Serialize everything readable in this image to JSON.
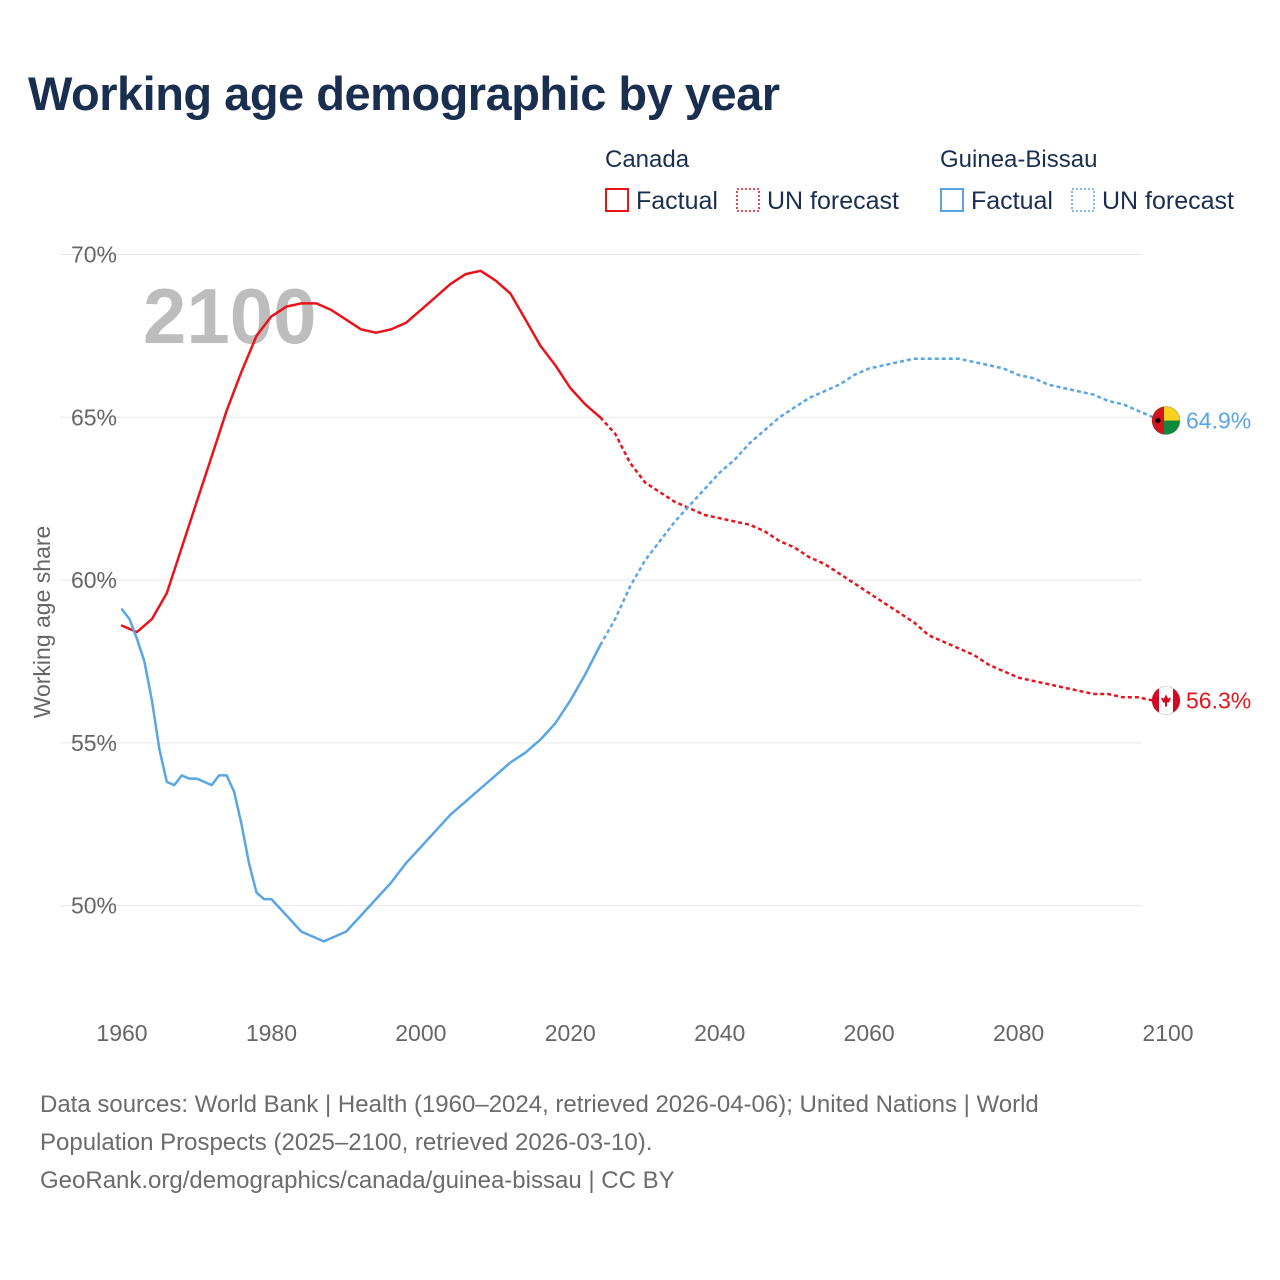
{
  "title": "Working age demographic by year",
  "colors": {
    "canada": "#e8141c",
    "guinea_bissau": "#5aa5e6",
    "title": "#1a2e4f",
    "grid": "#e6e6e6"
  },
  "legend": {
    "groups": [
      {
        "name": "Canada",
        "color": "#e8141c",
        "items": [
          {
            "label": "Factual",
            "style": "solid"
          },
          {
            "label": "UN forecast",
            "style": "dotted"
          }
        ]
      },
      {
        "name": "Guinea-Bissau",
        "color": "#5aa5e6",
        "items": [
          {
            "label": "Factual",
            "style": "solid"
          },
          {
            "label": "UN forecast",
            "style": "dotted"
          }
        ]
      }
    ]
  },
  "chart_data": {
    "type": "line",
    "title": "Working age demographic by year",
    "xlabel": "",
    "ylabel": "Working age share",
    "xlim": [
      1960,
      2100
    ],
    "ylim": [
      47.1,
      70.6
    ],
    "y_ticks": [
      50,
      55,
      60,
      65,
      70
    ],
    "y_tick_labels": [
      "50%",
      "55%",
      "60%",
      "65%",
      "70%"
    ],
    "x_ticks": [
      1960,
      1980,
      2000,
      2020,
      2040,
      2060,
      2080,
      2100
    ],
    "x_tick_labels": [
      "1960",
      "1980",
      "2000",
      "2020",
      "2040",
      "2060",
      "2080",
      "2100"
    ],
    "grid": "horizontal",
    "year_indicator": "2100",
    "factual_end_year": 2024,
    "series": [
      {
        "name": "Canada",
        "color": "#e8141c",
        "end_label": "56.3%",
        "flag_icon": "canada-flag-icon",
        "points": [
          [
            1960,
            58.6
          ],
          [
            1962,
            58.4
          ],
          [
            1964,
            58.8
          ],
          [
            1966,
            59.6
          ],
          [
            1968,
            61.0
          ],
          [
            1970,
            62.4
          ],
          [
            1972,
            63.8
          ],
          [
            1974,
            65.2
          ],
          [
            1976,
            66.4
          ],
          [
            1978,
            67.5
          ],
          [
            1980,
            68.1
          ],
          [
            1982,
            68.4
          ],
          [
            1984,
            68.5
          ],
          [
            1986,
            68.5
          ],
          [
            1988,
            68.3
          ],
          [
            1990,
            68.0
          ],
          [
            1992,
            67.7
          ],
          [
            1994,
            67.6
          ],
          [
            1996,
            67.7
          ],
          [
            1998,
            67.9
          ],
          [
            2000,
            68.3
          ],
          [
            2002,
            68.7
          ],
          [
            2004,
            69.1
          ],
          [
            2006,
            69.4
          ],
          [
            2008,
            69.5
          ],
          [
            2010,
            69.2
          ],
          [
            2012,
            68.8
          ],
          [
            2014,
            68.0
          ],
          [
            2016,
            67.2
          ],
          [
            2018,
            66.6
          ],
          [
            2020,
            65.9
          ],
          [
            2022,
            65.4
          ],
          [
            2024,
            65.0
          ],
          [
            2026,
            64.5
          ],
          [
            2028,
            63.6
          ],
          [
            2030,
            63.0
          ],
          [
            2032,
            62.7
          ],
          [
            2034,
            62.4
          ],
          [
            2036,
            62.2
          ],
          [
            2038,
            62.0
          ],
          [
            2040,
            61.9
          ],
          [
            2042,
            61.8
          ],
          [
            2044,
            61.7
          ],
          [
            2046,
            61.5
          ],
          [
            2048,
            61.2
          ],
          [
            2050,
            61.0
          ],
          [
            2052,
            60.7
          ],
          [
            2054,
            60.5
          ],
          [
            2056,
            60.2
          ],
          [
            2058,
            59.9
          ],
          [
            2060,
            59.6
          ],
          [
            2062,
            59.3
          ],
          [
            2064,
            59.0
          ],
          [
            2066,
            58.7
          ],
          [
            2068,
            58.3
          ],
          [
            2070,
            58.1
          ],
          [
            2072,
            57.9
          ],
          [
            2074,
            57.7
          ],
          [
            2076,
            57.4
          ],
          [
            2078,
            57.2
          ],
          [
            2080,
            57.0
          ],
          [
            2082,
            56.9
          ],
          [
            2084,
            56.8
          ],
          [
            2086,
            56.7
          ],
          [
            2088,
            56.6
          ],
          [
            2090,
            56.5
          ],
          [
            2092,
            56.5
          ],
          [
            2094,
            56.4
          ],
          [
            2096,
            56.4
          ],
          [
            2098,
            56.3
          ],
          [
            2100,
            56.3
          ]
        ]
      },
      {
        "name": "Guinea-Bissau",
        "color": "#5aa5e6",
        "end_label": "64.9%",
        "flag_icon": "guinea-bissau-flag-icon",
        "points": [
          [
            1960,
            59.1
          ],
          [
            1961,
            58.8
          ],
          [
            1962,
            58.2
          ],
          [
            1963,
            57.5
          ],
          [
            1964,
            56.3
          ],
          [
            1965,
            54.8
          ],
          [
            1966,
            53.8
          ],
          [
            1967,
            53.7
          ],
          [
            1968,
            54.0
          ],
          [
            1969,
            53.9
          ],
          [
            1970,
            53.9
          ],
          [
            1972,
            53.7
          ],
          [
            1973,
            54.0
          ],
          [
            1974,
            54.0
          ],
          [
            1975,
            53.5
          ],
          [
            1976,
            52.5
          ],
          [
            1977,
            51.3
          ],
          [
            1978,
            50.4
          ],
          [
            1979,
            50.2
          ],
          [
            1980,
            50.2
          ],
          [
            1982,
            49.7
          ],
          [
            1984,
            49.2
          ],
          [
            1986,
            49.0
          ],
          [
            1987,
            48.9
          ],
          [
            1988,
            49.0
          ],
          [
            1990,
            49.2
          ],
          [
            1992,
            49.7
          ],
          [
            1994,
            50.2
          ],
          [
            1996,
            50.7
          ],
          [
            1998,
            51.3
          ],
          [
            2000,
            51.8
          ],
          [
            2002,
            52.3
          ],
          [
            2004,
            52.8
          ],
          [
            2006,
            53.2
          ],
          [
            2008,
            53.6
          ],
          [
            2010,
            54.0
          ],
          [
            2012,
            54.4
          ],
          [
            2014,
            54.7
          ],
          [
            2016,
            55.1
          ],
          [
            2018,
            55.6
          ],
          [
            2020,
            56.3
          ],
          [
            2022,
            57.1
          ],
          [
            2024,
            58.0
          ],
          [
            2026,
            58.8
          ],
          [
            2028,
            59.8
          ],
          [
            2030,
            60.6
          ],
          [
            2032,
            61.2
          ],
          [
            2034,
            61.8
          ],
          [
            2036,
            62.3
          ],
          [
            2038,
            62.8
          ],
          [
            2040,
            63.3
          ],
          [
            2042,
            63.7
          ],
          [
            2044,
            64.2
          ],
          [
            2046,
            64.6
          ],
          [
            2048,
            65.0
          ],
          [
            2050,
            65.3
          ],
          [
            2052,
            65.6
          ],
          [
            2054,
            65.8
          ],
          [
            2056,
            66.0
          ],
          [
            2058,
            66.3
          ],
          [
            2060,
            66.5
          ],
          [
            2062,
            66.6
          ],
          [
            2064,
            66.7
          ],
          [
            2066,
            66.8
          ],
          [
            2068,
            66.8
          ],
          [
            2070,
            66.8
          ],
          [
            2072,
            66.8
          ],
          [
            2074,
            66.7
          ],
          [
            2076,
            66.6
          ],
          [
            2078,
            66.5
          ],
          [
            2080,
            66.3
          ],
          [
            2082,
            66.2
          ],
          [
            2084,
            66.0
          ],
          [
            2086,
            65.9
          ],
          [
            2088,
            65.8
          ],
          [
            2090,
            65.7
          ],
          [
            2092,
            65.5
          ],
          [
            2094,
            65.4
          ],
          [
            2096,
            65.2
          ],
          [
            2098,
            65.0
          ],
          [
            2100,
            64.9
          ]
        ]
      }
    ]
  },
  "sources": {
    "line1": "Data sources: World Bank | Health (1960–2024, retrieved 2026-04-06); United Nations | World",
    "line2": "Population Prospects (2025–2100, retrieved 2026-03-10).",
    "line3": "GeoRank.org/demographics/canada/guinea-bissau | CC BY"
  }
}
